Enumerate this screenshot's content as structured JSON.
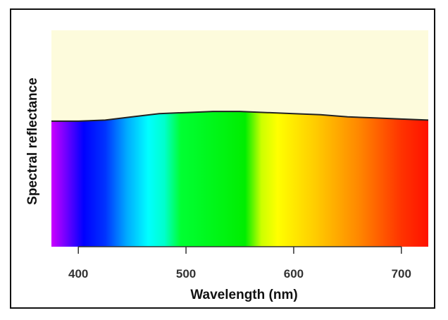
{
  "chart_data": {
    "type": "area",
    "xlabel": "Wavelength (nm)",
    "ylabel": "Spectral reflectance",
    "xlim": [
      375,
      725
    ],
    "x_ticks": [
      400,
      500,
      600,
      700
    ],
    "x_tick_labels": [
      "400",
      "500",
      "600",
      "700"
    ],
    "ylim": [
      0,
      1
    ],
    "grid": false,
    "series": [
      {
        "x": [
          375,
          400,
          425,
          450,
          475,
          500,
          525,
          550,
          575,
          600,
          625,
          650,
          675,
          700,
          725
        ],
        "values": [
          0.58,
          0.58,
          0.585,
          0.6,
          0.615,
          0.62,
          0.625,
          0.625,
          0.62,
          0.615,
          0.61,
          0.6,
          0.595,
          0.59,
          0.585
        ]
      }
    ],
    "colors": {
      "background_fill": "#fdfbdc",
      "curve": "#222222",
      "spectrum": [
        {
          "nm": 375,
          "color": "#cc00ff"
        },
        {
          "nm": 390,
          "color": "#6600ff"
        },
        {
          "nm": 405,
          "color": "#0000ff"
        },
        {
          "nm": 425,
          "color": "#0033ff"
        },
        {
          "nm": 445,
          "color": "#00aaff"
        },
        {
          "nm": 465,
          "color": "#00ffff"
        },
        {
          "nm": 480,
          "color": "#00ffcc"
        },
        {
          "nm": 495,
          "color": "#00ff33"
        },
        {
          "nm": 555,
          "color": "#00ee00"
        },
        {
          "nm": 570,
          "color": "#ccff00"
        },
        {
          "nm": 585,
          "color": "#ffff00"
        },
        {
          "nm": 620,
          "color": "#ffcc00"
        },
        {
          "nm": 660,
          "color": "#ff8800"
        },
        {
          "nm": 700,
          "color": "#ff3300"
        },
        {
          "nm": 725,
          "color": "#ff1100"
        }
      ]
    }
  }
}
